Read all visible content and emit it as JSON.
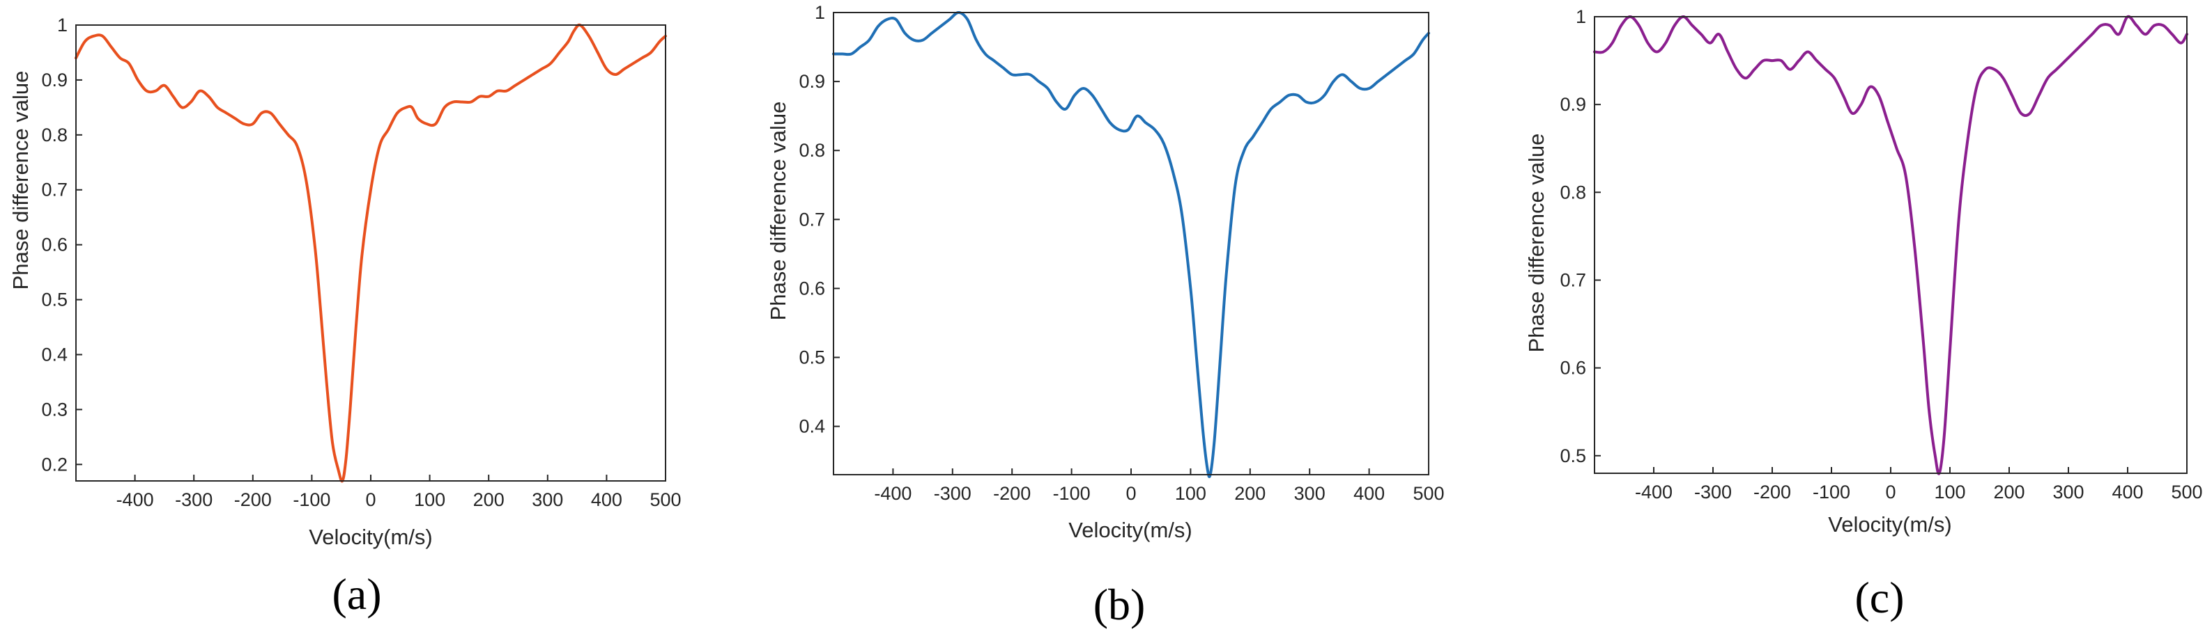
{
  "chart_data": [
    {
      "type": "line",
      "panel_label": "(a)",
      "xlabel": "Velocity(m/s)",
      "ylabel": "Phase difference value",
      "xlim": [
        -500,
        500
      ],
      "ylim": [
        0.17,
        1.0
      ],
      "xticks": [
        -400,
        -300,
        -200,
        -100,
        0,
        100,
        200,
        300,
        400,
        500
      ],
      "xtick_labels": [
        "-400",
        "-300",
        "-200",
        "-100",
        "0",
        "100",
        "200",
        "300",
        "400",
        "500"
      ],
      "yticks": [
        0.2,
        0.3,
        0.4,
        0.5,
        0.6,
        0.7,
        0.8,
        0.9,
        1.0
      ],
      "ytick_labels": [
        "0.2",
        "0.3",
        "0.4",
        "0.5",
        "0.6",
        "0.7",
        "0.8",
        "0.9",
        "1"
      ],
      "grid": false,
      "color": "#E8501E",
      "series": [
        {
          "x": [
            -500,
            -485,
            -470,
            -455,
            -440,
            -425,
            -410,
            -395,
            -380,
            -365,
            -350,
            -335,
            -320,
            -305,
            -290,
            -275,
            -260,
            -245,
            -230,
            -215,
            -200,
            -185,
            -170,
            -155,
            -140,
            -125,
            -110,
            -95,
            -85,
            -75,
            -65,
            -55,
            -48,
            -42,
            -35,
            -25,
            -15,
            0,
            15,
            30,
            45,
            60,
            70,
            80,
            95,
            110,
            125,
            140,
            155,
            170,
            185,
            200,
            215,
            230,
            245,
            260,
            275,
            290,
            305,
            320,
            335,
            345,
            355,
            370,
            385,
            400,
            415,
            430,
            445,
            460,
            475,
            490,
            500
          ],
          "y": [
            0.94,
            0.97,
            0.98,
            0.98,
            0.96,
            0.94,
            0.93,
            0.9,
            0.88,
            0.88,
            0.89,
            0.87,
            0.85,
            0.86,
            0.88,
            0.87,
            0.85,
            0.84,
            0.83,
            0.82,
            0.82,
            0.84,
            0.84,
            0.82,
            0.8,
            0.78,
            0.72,
            0.6,
            0.48,
            0.35,
            0.24,
            0.19,
            0.17,
            0.21,
            0.3,
            0.45,
            0.58,
            0.7,
            0.78,
            0.81,
            0.84,
            0.85,
            0.85,
            0.83,
            0.82,
            0.82,
            0.85,
            0.86,
            0.86,
            0.86,
            0.87,
            0.87,
            0.88,
            0.88,
            0.89,
            0.9,
            0.91,
            0.92,
            0.93,
            0.95,
            0.97,
            0.99,
            1.0,
            0.98,
            0.95,
            0.92,
            0.91,
            0.92,
            0.93,
            0.94,
            0.95,
            0.97,
            0.98
          ]
        }
      ]
    },
    {
      "type": "line",
      "panel_label": "(b)",
      "xlabel": "Velocity(m/s)",
      "ylabel": "Phase difference value",
      "xlim": [
        -500,
        500
      ],
      "ylim": [
        0.33,
        1.0
      ],
      "xticks": [
        -400,
        -300,
        -200,
        -100,
        0,
        100,
        200,
        300,
        400,
        500
      ],
      "xtick_labels": [
        "-400",
        "-300",
        "-200",
        "-100",
        "0",
        "100",
        "200",
        "300",
        "400",
        "500"
      ],
      "yticks": [
        0.4,
        0.5,
        0.6,
        0.7,
        0.8,
        0.9,
        1.0
      ],
      "ytick_labels": [
        "0.4",
        "0.5",
        "0.6",
        "0.7",
        "0.8",
        "0.9",
        "1"
      ],
      "grid": false,
      "color": "#1F6FB5",
      "series": [
        {
          "x": [
            -500,
            -485,
            -470,
            -455,
            -440,
            -425,
            -410,
            -395,
            -380,
            -365,
            -350,
            -335,
            -320,
            -305,
            -290,
            -275,
            -260,
            -245,
            -230,
            -215,
            -200,
            -185,
            -170,
            -155,
            -140,
            -125,
            -110,
            -95,
            -80,
            -65,
            -50,
            -35,
            -20,
            -5,
            10,
            25,
            40,
            55,
            70,
            85,
            100,
            110,
            120,
            128,
            133,
            140,
            150,
            160,
            175,
            190,
            205,
            220,
            235,
            250,
            265,
            280,
            295,
            310,
            325,
            340,
            355,
            370,
            385,
            400,
            415,
            430,
            445,
            460,
            475,
            490,
            500
          ],
          "y": [
            0.94,
            0.94,
            0.94,
            0.95,
            0.96,
            0.98,
            0.99,
            0.99,
            0.97,
            0.96,
            0.96,
            0.97,
            0.98,
            0.99,
            1.0,
            0.99,
            0.96,
            0.94,
            0.93,
            0.92,
            0.91,
            0.91,
            0.91,
            0.9,
            0.89,
            0.87,
            0.86,
            0.88,
            0.89,
            0.88,
            0.86,
            0.84,
            0.83,
            0.83,
            0.85,
            0.84,
            0.83,
            0.81,
            0.77,
            0.71,
            0.6,
            0.5,
            0.4,
            0.34,
            0.33,
            0.38,
            0.5,
            0.62,
            0.75,
            0.8,
            0.82,
            0.84,
            0.86,
            0.87,
            0.88,
            0.88,
            0.87,
            0.87,
            0.88,
            0.9,
            0.91,
            0.9,
            0.89,
            0.89,
            0.9,
            0.91,
            0.92,
            0.93,
            0.94,
            0.96,
            0.97
          ]
        }
      ]
    },
    {
      "type": "line",
      "panel_label": "(c)",
      "xlabel": "Velocity(m/s)",
      "ylabel": "Phase difference value",
      "xlim": [
        -500,
        500
      ],
      "ylim": [
        0.48,
        1.0
      ],
      "xticks": [
        -400,
        -300,
        -200,
        -100,
        0,
        100,
        200,
        300,
        400,
        500
      ],
      "xtick_labels": [
        "-400",
        "-300",
        "-200",
        "-100",
        "0",
        "100",
        "200",
        "300",
        "400",
        "500"
      ],
      "yticks": [
        0.5,
        0.6,
        0.7,
        0.8,
        0.9,
        1.0
      ],
      "ytick_labels": [
        "0.5",
        "0.6",
        "0.7",
        "0.8",
        "0.9",
        "1"
      ],
      "grid": false,
      "color": "#8B1F8F",
      "series": [
        {
          "x": [
            -500,
            -485,
            -470,
            -455,
            -440,
            -425,
            -410,
            -395,
            -380,
            -365,
            -350,
            -335,
            -320,
            -305,
            -290,
            -275,
            -260,
            -245,
            -230,
            -215,
            -200,
            -185,
            -170,
            -155,
            -140,
            -125,
            -110,
            -95,
            -80,
            -65,
            -50,
            -35,
            -20,
            -5,
            10,
            25,
            40,
            55,
            65,
            75,
            82,
            90,
            100,
            115,
            130,
            145,
            160,
            175,
            190,
            205,
            220,
            235,
            250,
            265,
            280,
            295,
            310,
            325,
            340,
            355,
            370,
            385,
            400,
            415,
            430,
            445,
            460,
            475,
            490,
            500
          ],
          "y": [
            0.96,
            0.96,
            0.97,
            0.99,
            1.0,
            0.99,
            0.97,
            0.96,
            0.97,
            0.99,
            1.0,
            0.99,
            0.98,
            0.97,
            0.98,
            0.96,
            0.94,
            0.93,
            0.94,
            0.95,
            0.95,
            0.95,
            0.94,
            0.95,
            0.96,
            0.95,
            0.94,
            0.93,
            0.91,
            0.89,
            0.9,
            0.92,
            0.91,
            0.88,
            0.85,
            0.82,
            0.74,
            0.63,
            0.55,
            0.5,
            0.48,
            0.52,
            0.62,
            0.77,
            0.86,
            0.92,
            0.94,
            0.94,
            0.93,
            0.91,
            0.89,
            0.89,
            0.91,
            0.93,
            0.94,
            0.95,
            0.96,
            0.97,
            0.98,
            0.99,
            0.99,
            0.98,
            1.0,
            0.99,
            0.98,
            0.99,
            0.99,
            0.98,
            0.97,
            0.98
          ]
        }
      ]
    }
  ]
}
